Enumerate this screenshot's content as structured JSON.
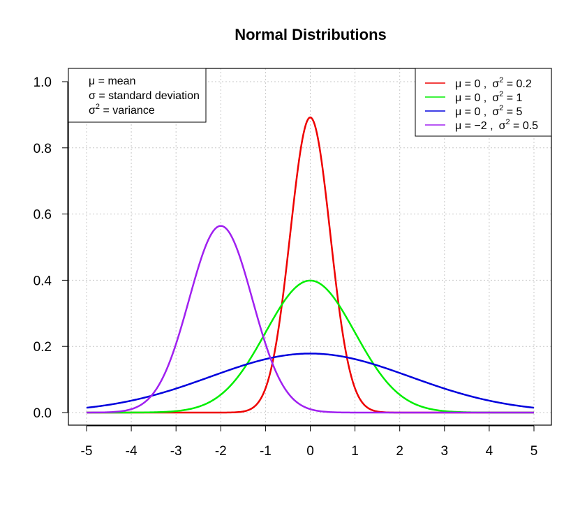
{
  "chart_data": {
    "type": "line",
    "title": "Normal Distributions",
    "xlabel": "",
    "ylabel": "",
    "xlim": [
      -5,
      5
    ],
    "ylim": [
      0,
      1
    ],
    "x_ticks": [
      "-5",
      "-4",
      "-3",
      "-2",
      "-1",
      "0",
      "1",
      "2",
      "3",
      "4",
      "5"
    ],
    "y_ticks": [
      "0.0",
      "0.2",
      "0.4",
      "0.6",
      "0.8",
      "1.0"
    ],
    "grid": true,
    "series": [
      {
        "name": "μ = 0 , σ² = 0.2",
        "mu": 0,
        "sigma2": 0.2,
        "color": "#ee0000",
        "legend": {
          "mu": "μ = 0 ,",
          "sigma": "σ",
          "sup": "2",
          "rest": " = 0.2"
        },
        "x": [
          -5,
          -4,
          -3,
          -2,
          -1.5,
          -1,
          -0.75,
          -0.5,
          -0.25,
          0,
          0.25,
          0.5,
          0.75,
          1,
          1.5,
          2,
          3,
          4,
          5
        ],
        "y": [
          0,
          0,
          0,
          0,
          0.0033,
          0.0727,
          0.22,
          0.4566,
          0.7384,
          0.8921,
          0.7384,
          0.4566,
          0.22,
          0.0727,
          0.0033,
          0,
          0,
          0,
          0
        ]
      },
      {
        "name": "μ = 0 , σ² = 1",
        "mu": 0,
        "sigma2": 1,
        "color": "#00ee00",
        "legend": {
          "mu": "μ = 0 ,",
          "sigma": "σ",
          "sup": "2",
          "rest": " = 1"
        },
        "x": [
          -5,
          -4,
          -3,
          -2,
          -1.5,
          -1,
          -0.5,
          0,
          0.5,
          1,
          1.5,
          2,
          3,
          4,
          5
        ],
        "y": [
          0,
          0.0001,
          0.0044,
          0.054,
          0.1295,
          0.242,
          0.3521,
          0.3989,
          0.3521,
          0.242,
          0.1295,
          0.054,
          0.0044,
          0.0001,
          0
        ]
      },
      {
        "name": "μ = 0 , σ² = 5",
        "mu": 0,
        "sigma2": 5,
        "color": "#0000dd",
        "legend": {
          "mu": "μ = 0 ,",
          "sigma": "σ",
          "sup": "2",
          "rest": " = 5"
        },
        "x": [
          -5,
          -4,
          -3,
          -2,
          -1,
          0,
          1,
          2,
          3,
          4,
          5
        ],
        "y": [
          0.0146,
          0.0361,
          0.0725,
          0.1196,
          0.1614,
          0.1784,
          0.1614,
          0.1196,
          0.0725,
          0.0361,
          0.0146
        ]
      },
      {
        "name": "μ = −2 , σ² = 0.5",
        "mu": -2,
        "sigma2": 0.5,
        "color": "#a020f0",
        "legend": {
          "mu": "μ = −2 ,",
          "sigma": "σ",
          "sup": "2",
          "rest": " = 0.5"
        },
        "x": [
          -5,
          -4,
          -3.5,
          -3,
          -2.5,
          -2,
          -1.5,
          -1,
          -0.5,
          0,
          1,
          2,
          3,
          4,
          5
        ],
        "y": [
          0,
          0.0103,
          0.0585,
          0.2076,
          0.4394,
          0.5642,
          0.4394,
          0.2076,
          0.0585,
          0.0103,
          0,
          0,
          0,
          0,
          0
        ]
      }
    ],
    "legend": {
      "position": "top-right"
    }
  },
  "notes": {
    "items": [
      {
        "sym": "μ",
        "sup": "",
        "text": " = mean"
      },
      {
        "sym": "σ",
        "sup": "",
        "text": " = standard deviation"
      },
      {
        "sym": "σ",
        "sup": "2",
        "text": " = variance"
      }
    ],
    "position": "top-left"
  }
}
